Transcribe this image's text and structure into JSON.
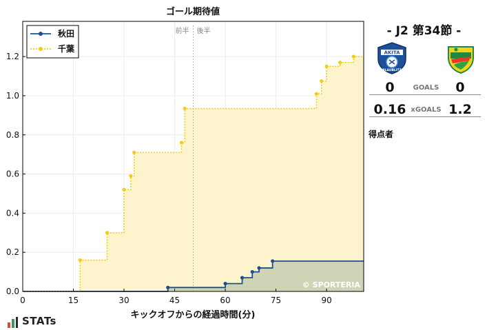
{
  "chart_data": {
    "type": "line",
    "step": true,
    "title": "ゴール期待値",
    "xlabel": "キックオフからの経過時間(分)",
    "ylabel": "",
    "xlim": [
      0,
      101
    ],
    "ylim": [
      0,
      1.38
    ],
    "xticks": [
      0,
      15,
      30,
      45,
      60,
      75,
      90
    ],
    "yticks": [
      0.0,
      0.2,
      0.4,
      0.6,
      0.8,
      1.0,
      1.2
    ],
    "grid": true,
    "legend": "top-left",
    "halftime_marker": {
      "x": 50.5,
      "labels": [
        "前半",
        "後半"
      ]
    },
    "watermark": "© SPORTERIA",
    "series": [
      {
        "name": "秋田",
        "color": "#1c4f8c",
        "fill": "#c9ccb2",
        "x": [
          43,
          60,
          65,
          68,
          70,
          74,
          101
        ],
        "y": [
          0.02,
          0.04,
          0.07,
          0.1,
          0.12,
          0.155,
          0.155
        ]
      },
      {
        "name": "千葉",
        "color": "#f5cc14",
        "fill": "#fdf3cc",
        "x": [
          17,
          25,
          30,
          32,
          33,
          47,
          48,
          87,
          88.5,
          90,
          94,
          98,
          101
        ],
        "y": [
          0.16,
          0.3,
          0.52,
          0.59,
          0.71,
          0.76,
          0.935,
          1.01,
          1.075,
          1.15,
          1.17,
          1.2,
          1.2
        ]
      }
    ]
  },
  "match": {
    "title": "- J2 第34節 -",
    "home_crest": "akita-blaublitz-crest",
    "away_crest": "jef-chiba-crest",
    "home_crest_text": "AKITA",
    "home_crest_sub": "BLAUBLITZ",
    "goals_label": "GOALS",
    "home_goals": "0",
    "away_goals": "0",
    "xgoals_label": "xGOALS",
    "home_xg": "0.16",
    "away_xg": "1.2",
    "scorers_label": "得点者"
  },
  "brand": {
    "name": "STATs",
    "icon": "bar-chart-icon",
    "colors": [
      "#d94a3d",
      "#3a9a5b",
      "#2a2a2a"
    ]
  }
}
